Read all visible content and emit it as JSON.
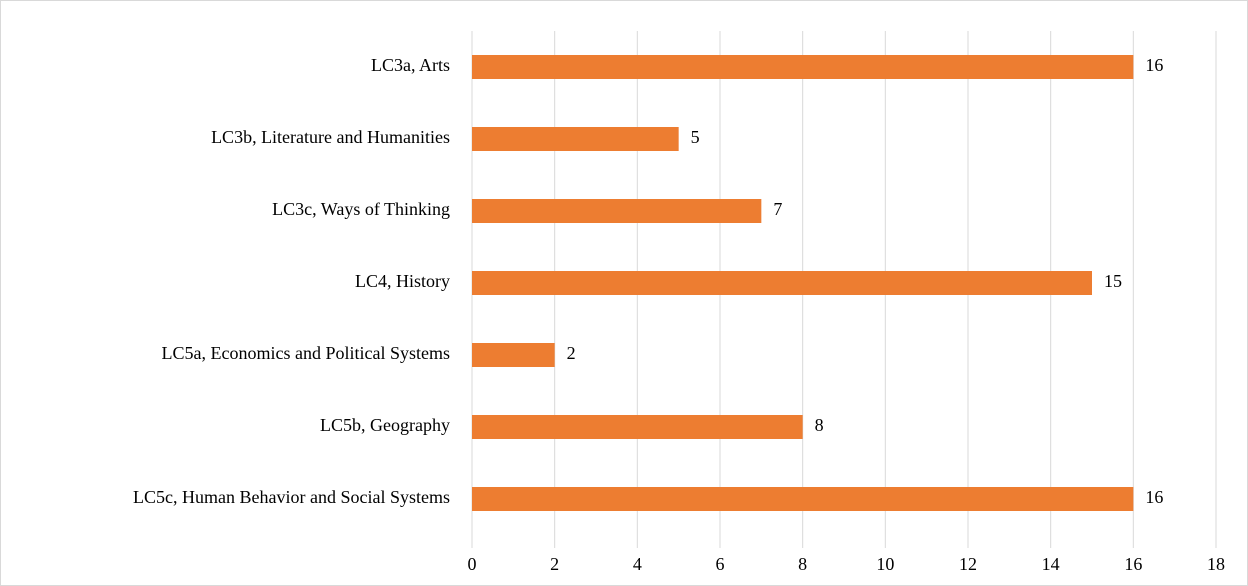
{
  "chart_data": {
    "type": "bar",
    "orientation": "horizontal",
    "categories": [
      "LC3a, Arts",
      "LC3b, Literature and Humanities",
      "LC3c, Ways of Thinking",
      "LC4, History",
      "LC5a, Economics and Political Systems",
      "LC5b, Geography",
      "LC5c, Human Behavior and Social Systems"
    ],
    "values": [
      16,
      5,
      7,
      15,
      2,
      8,
      16
    ],
    "color": "#ed7d31",
    "xlim": [
      0,
      18
    ],
    "xticks": [
      0,
      2,
      4,
      6,
      8,
      10,
      12,
      14,
      16,
      18
    ],
    "grid": true
  }
}
